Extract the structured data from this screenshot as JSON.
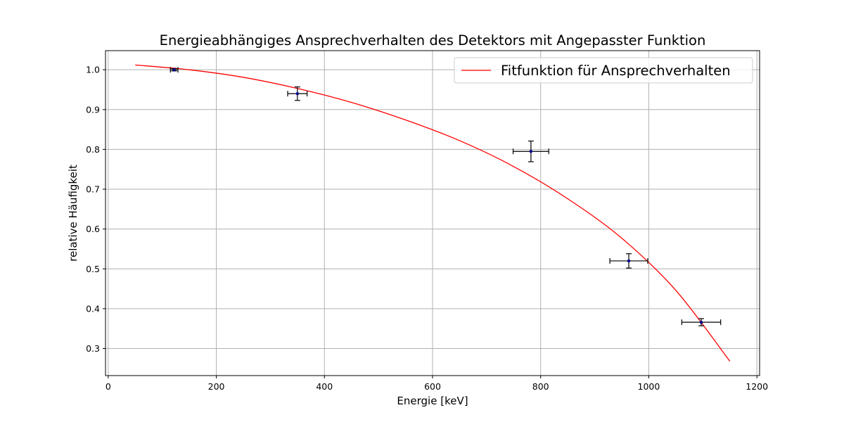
{
  "chart_data": {
    "type": "scatter",
    "title": "Energieabhängiges Ansprechverhalten des Detektors mit Angepasster Funktion",
    "xlabel": "Energie [keV]",
    "ylabel": "relative Häufigkeit",
    "xlim": [
      -5,
      1205
    ],
    "ylim": [
      0.232,
      1.048
    ],
    "xticks": [
      0,
      200,
      400,
      600,
      800,
      1000,
      1200
    ],
    "yticks": [
      0.3,
      0.4,
      0.5,
      0.6,
      0.7,
      0.8,
      0.9,
      1.0
    ],
    "xtick_labels": [
      "0",
      "200",
      "400",
      "600",
      "800",
      "1000",
      "1200"
    ],
    "ytick_labels": [
      "0.3",
      "0.4",
      "0.5",
      "0.6",
      "0.7",
      "0.8",
      "0.9",
      "1.0"
    ],
    "grid": true,
    "legend_position": "top-right",
    "colors": {
      "points": "#00008b",
      "errorbars": "#000000",
      "fit": "#ff0000",
      "grid": "#b0b0b0"
    },
    "points": [
      {
        "x": 122,
        "y": 1.0,
        "xerr": 7,
        "yerr": 0.003
      },
      {
        "x": 350,
        "y": 0.94,
        "xerr": 18,
        "yerr": 0.017
      },
      {
        "x": 782,
        "y": 0.795,
        "xerr": 33,
        "yerr": 0.026
      },
      {
        "x": 963,
        "y": 0.52,
        "xerr": 35,
        "yerr": 0.018
      },
      {
        "x": 1097,
        "y": 0.366,
        "xerr": 36,
        "yerr": 0.009
      }
    ],
    "series": [
      {
        "name": "Fitfunktion für Ansprechverhalten",
        "type": "line",
        "x": [
          50,
          150,
          250,
          350,
          450,
          550,
          650,
          750,
          850,
          950,
          1050,
          1150
        ],
        "y": [
          1.012,
          1.0,
          0.981,
          0.953,
          0.918,
          0.874,
          0.822,
          0.757,
          0.676,
          0.577,
          0.446,
          0.268
        ]
      }
    ]
  }
}
